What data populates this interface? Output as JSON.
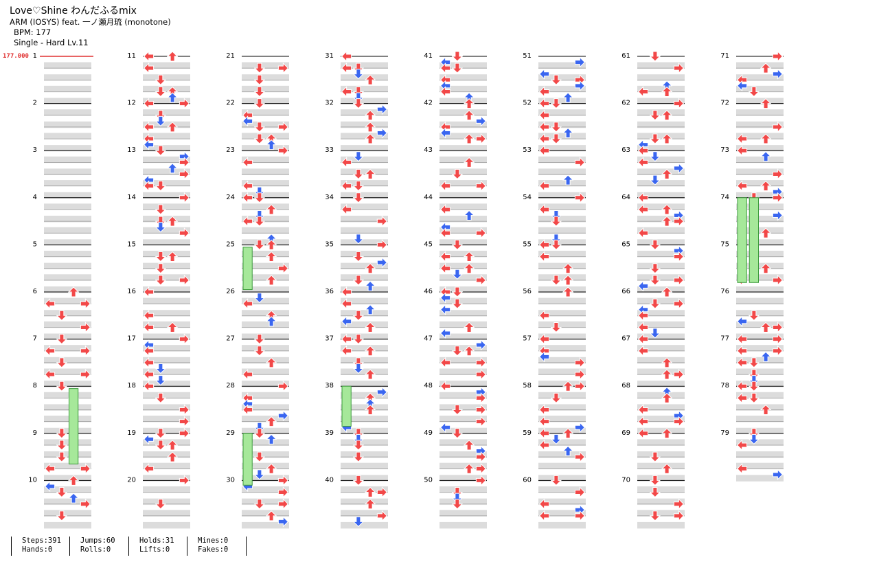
{
  "song": {
    "title": "Love♡Shine わんだふるmix",
    "artist": "ARM (IOSYS) feat. 一ノ瀬月琉 (monotone)",
    "bpm_line": "BPM: 177",
    "difficulty_line": "Single - Hard  Lv.11"
  },
  "chart_meta": {
    "bpm_marker": "177.000",
    "measure_count": 79,
    "measures_per_column": 10,
    "columns_shown": 8
  },
  "stats": [
    {
      "top": "Steps:391",
      "bottom": "Hands:0"
    },
    {
      "top": "Jumps:60",
      "bottom": "Rolls:0"
    },
    {
      "top": "Holds:31",
      "bottom": "Lifts:0"
    },
    {
      "top": "Mines:0",
      "bottom": "Fakes:0"
    }
  ],
  "colors": {
    "quarter": "#f24848",
    "eighth": "#3a66f0",
    "sixteenth": "#f2d534",
    "twelfth": "#a445f0",
    "hold": "#a6e89a",
    "hold_border": "#3a9a3a",
    "band": "#dcdcdc",
    "bpm": "#e03030"
  },
  "notes_sample": {
    "description_free": true,
    "measures": {
      "6": [
        [
          0,
          "U"
        ],
        [
          0.25,
          "L"
        ],
        [
          0.25,
          "R"
        ],
        [
          0.5,
          "D"
        ],
        [
          0.75,
          "R"
        ]
      ],
      "7": [
        [
          0,
          "D"
        ],
        [
          0.25,
          "L"
        ],
        [
          0.25,
          "R"
        ],
        [
          0.5,
          "D"
        ],
        [
          0.75,
          "L"
        ],
        [
          0.75,
          "R"
        ]
      ],
      "8": [
        [
          0,
          "D"
        ],
        [
          0.25,
          "U"
        ]
      ],
      "9": [
        [
          0,
          "D"
        ],
        [
          0.25,
          "D"
        ],
        [
          0.5,
          "D"
        ],
        [
          0.75,
          "L"
        ],
        [
          0.75,
          "R"
        ]
      ],
      "10": [
        [
          0,
          "U"
        ],
        [
          0.125,
          "L"
        ],
        [
          0.25,
          "D"
        ],
        [
          0.375,
          "U"
        ],
        [
          0.5,
          "R"
        ],
        [
          0.75,
          "D"
        ]
      ]
    }
  }
}
